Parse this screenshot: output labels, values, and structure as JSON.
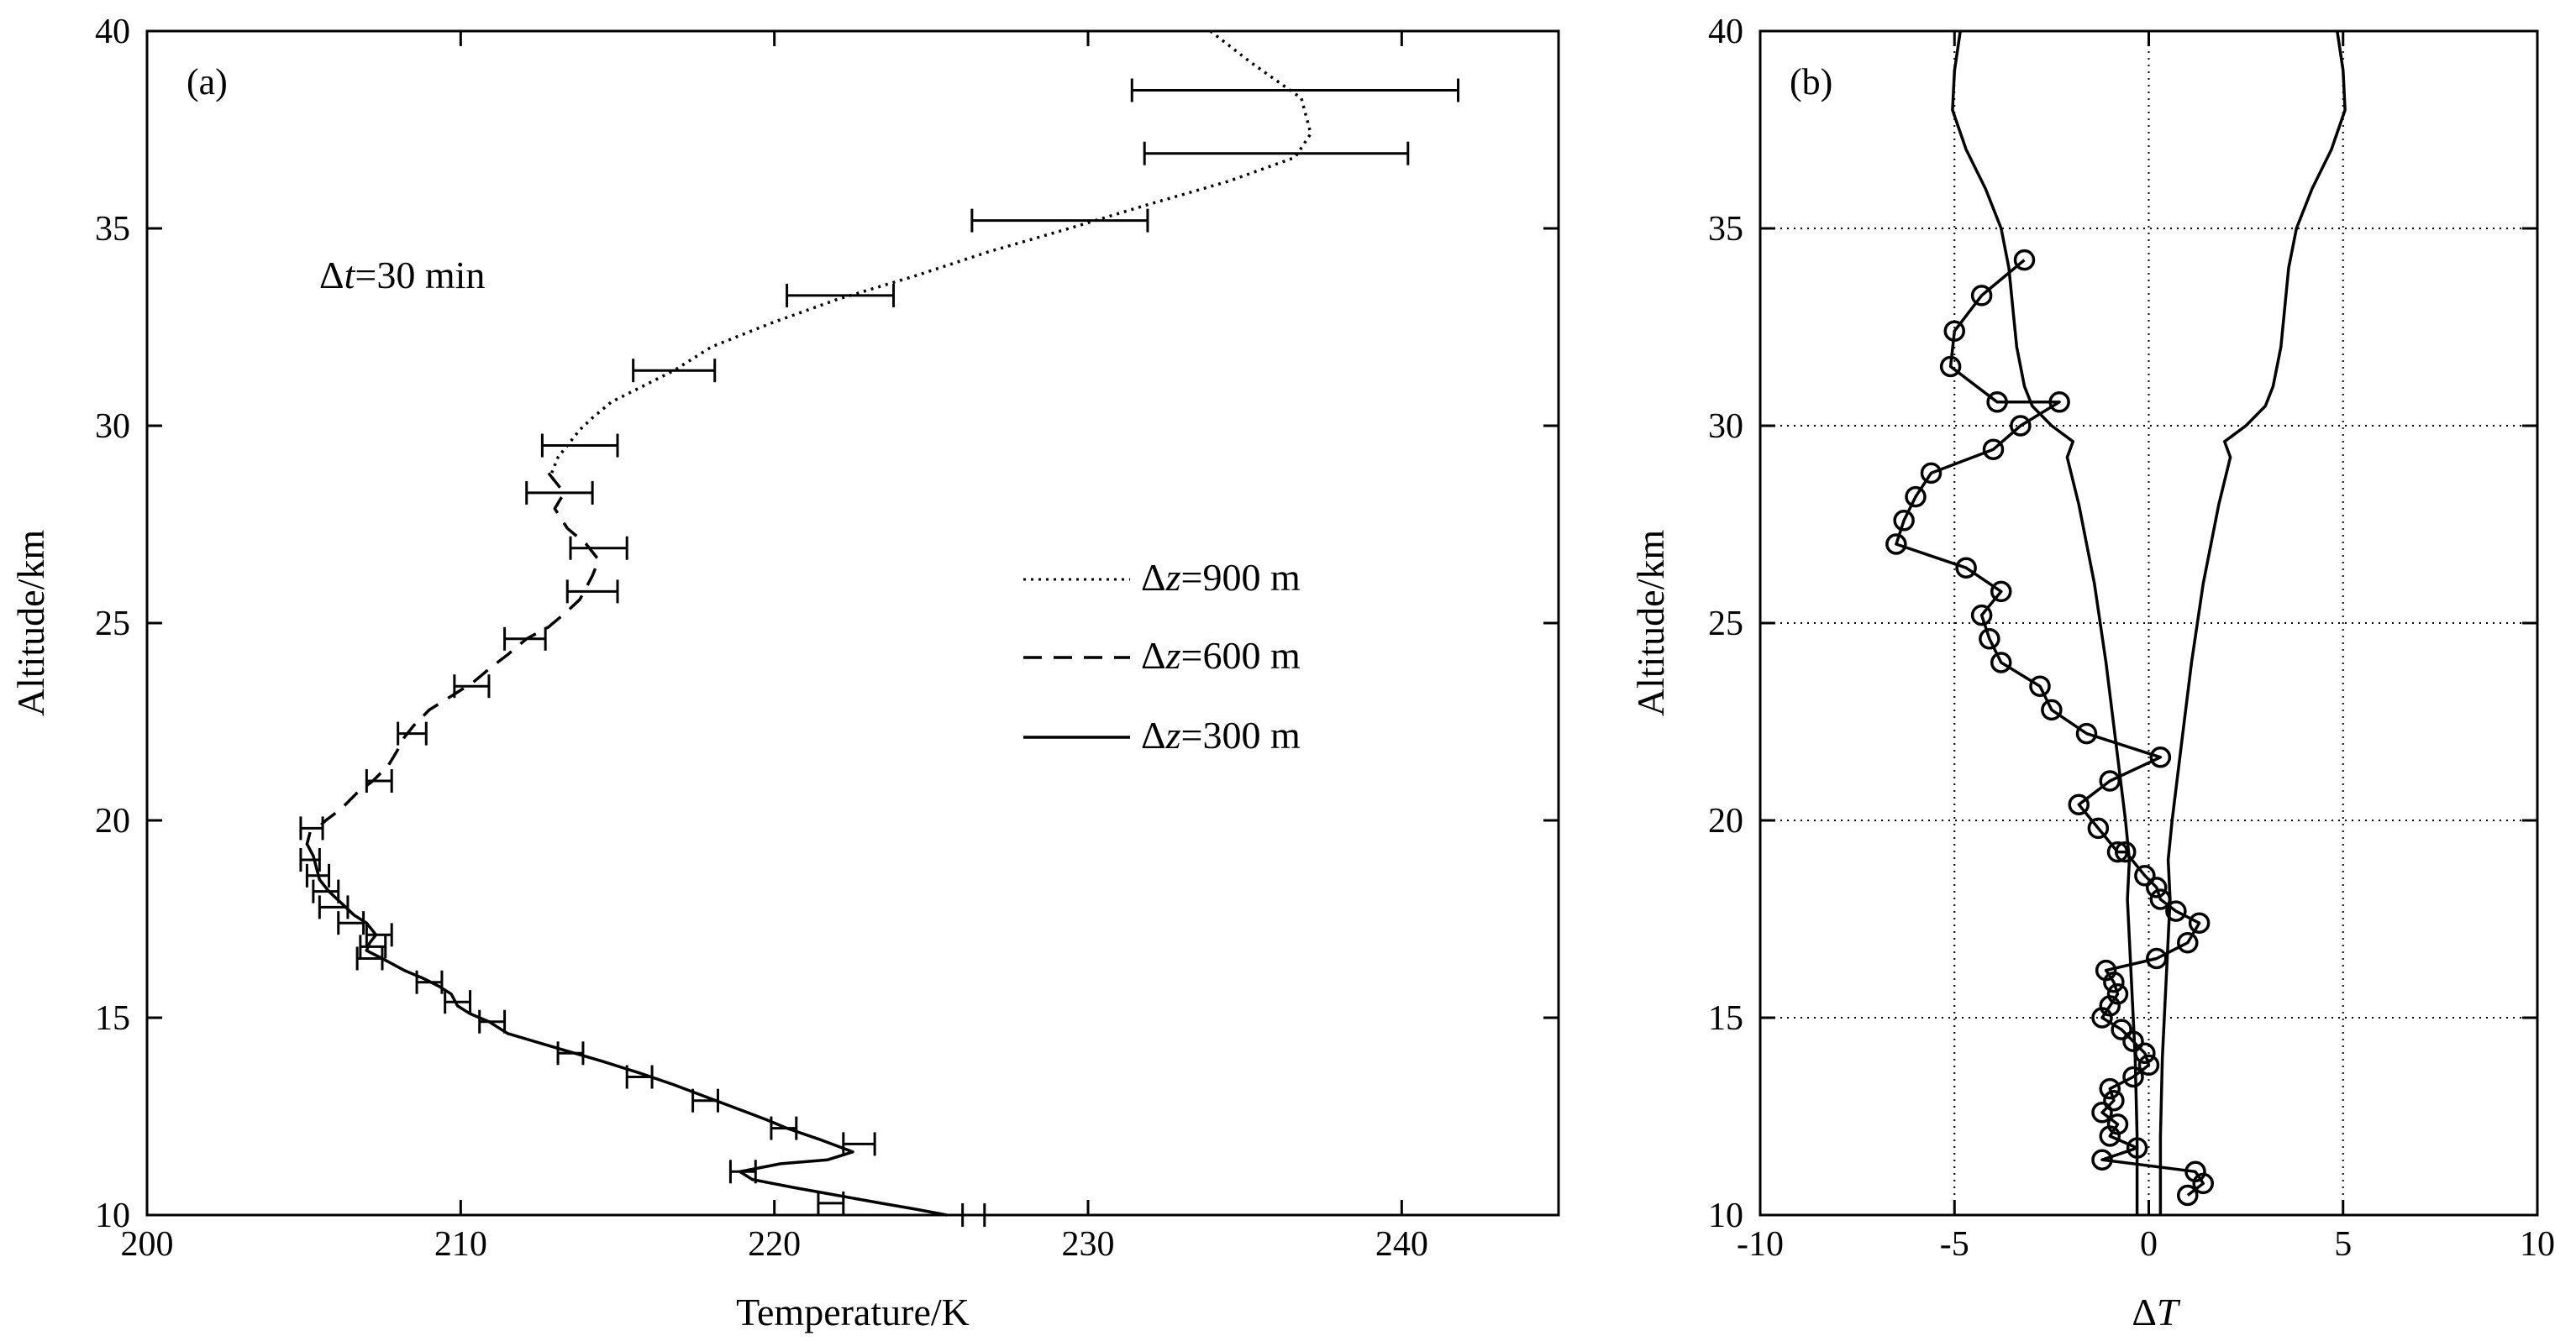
{
  "chart_data": [
    {
      "type": "line",
      "panel_label": "(a)",
      "xlabel": "Temperature/K",
      "ylabel": "Altitude/km",
      "xlim": [
        200,
        245
      ],
      "ylim": [
        10,
        40
      ],
      "xticks": [
        "200",
        "210",
        "220",
        "230",
        "240"
      ],
      "yticks": [
        "10",
        "15",
        "20",
        "25",
        "30",
        "35",
        "40"
      ],
      "grid": false,
      "annotation": {
        "prefix": "Δ",
        "var": "t",
        "suffix": "=30 min",
        "x": 205,
        "y": 34
      },
      "legend": {
        "position": "middle-right",
        "entries": [
          {
            "prefix": "Δ",
            "var": "z",
            "suffix": "=900 m",
            "style": "dotted"
          },
          {
            "prefix": "Δ",
            "var": "z",
            "suffix": "=600 m",
            "style": "dashed"
          },
          {
            "prefix": "Δ",
            "var": "z",
            "suffix": "=300 m",
            "style": "solid"
          }
        ]
      },
      "series": [
        {
          "style": "dotted",
          "x": [
            233.9,
            235.2,
            236.8,
            237.1,
            236.6,
            234.5,
            231.9,
            229.4,
            226.8,
            224.5,
            222.0,
            219.9,
            218.0,
            216.8,
            215.8,
            214.8,
            214.2,
            213.8,
            213.4,
            213.1,
            212.9,
            213.0
          ],
          "y": [
            40,
            39.2,
            38.3,
            37.4,
            36.8,
            36.2,
            35.6,
            35.0,
            34.4,
            33.8,
            33.2,
            32.6,
            32.0,
            31.4,
            31.0,
            30.6,
            30.2,
            29.9,
            29.5,
            29.2,
            28.8,
            28.5
          ]
        },
        {
          "style": "dashed",
          "x": [
            212.8,
            213.3,
            213.0,
            213.4,
            214.0,
            214.4,
            214.2,
            214.0,
            213.8,
            213.4,
            212.8,
            212.1,
            211.5,
            211.0,
            210.4,
            209.6,
            209.0,
            208.5,
            208.2,
            208.0,
            207.7,
            207.2,
            206.7,
            206.2,
            205.7,
            205.3
          ],
          "y": [
            28.8,
            28.3,
            27.9,
            27.4,
            27.0,
            26.6,
            26.2,
            25.9,
            25.6,
            25.3,
            24.9,
            24.6,
            24.2,
            23.9,
            23.5,
            23.1,
            22.8,
            22.4,
            22.1,
            21.8,
            21.4,
            21.0,
            20.7,
            20.3,
            20.0,
            19.7
          ]
        },
        {
          "style": "solid",
          "x": [
            205.2,
            205.1,
            205.3,
            205.4,
            205.5,
            205.8,
            206.2,
            206.6,
            207.0,
            207.3,
            207.1,
            207.0,
            207.5,
            208.2,
            208.8,
            209.3,
            209.7,
            209.9,
            210.3,
            210.9,
            211.5,
            213.2,
            214.5,
            215.7,
            216.8,
            217.8,
            218.8,
            219.8,
            220.4,
            221.5,
            222.5,
            221.7,
            220.2,
            218.9,
            219.3,
            220.6,
            222.0,
            223.4,
            224.5,
            225.5
          ],
          "y": [
            19.7,
            19.4,
            19.1,
            18.8,
            18.5,
            18.2,
            17.9,
            17.6,
            17.4,
            17.1,
            16.9,
            16.7,
            16.5,
            16.2,
            16.0,
            15.8,
            15.6,
            15.3,
            15.1,
            14.9,
            14.6,
            14.2,
            13.9,
            13.6,
            13.3,
            13.0,
            12.7,
            12.4,
            12.2,
            11.9,
            11.6,
            11.4,
            11.3,
            11.1,
            10.9,
            10.7,
            10.5,
            10.3,
            10.15,
            10.0
          ]
        }
      ],
      "error_bars": [
        {
          "y": 38.5,
          "x0": 231.4,
          "x1": 241.8
        },
        {
          "y": 36.9,
          "x0": 231.8,
          "x1": 240.2
        },
        {
          "y": 35.2,
          "x0": 226.3,
          "x1": 231.9
        },
        {
          "y": 33.3,
          "x0": 220.4,
          "x1": 223.8
        },
        {
          "y": 31.4,
          "x0": 215.5,
          "x1": 218.1
        },
        {
          "y": 29.5,
          "x0": 212.6,
          "x1": 215.0
        },
        {
          "y": 28.3,
          "x0": 212.1,
          "x1": 214.2
        },
        {
          "y": 26.9,
          "x0": 213.5,
          "x1": 215.3
        },
        {
          "y": 25.8,
          "x0": 213.4,
          "x1": 215.0
        },
        {
          "y": 24.6,
          "x0": 211.4,
          "x1": 212.7
        },
        {
          "y": 23.4,
          "x0": 209.8,
          "x1": 210.9
        },
        {
          "y": 22.2,
          "x0": 208.0,
          "x1": 208.9
        },
        {
          "y": 21.0,
          "x0": 207.0,
          "x1": 207.8
        },
        {
          "y": 19.8,
          "x0": 204.9,
          "x1": 205.6
        },
        {
          "y": 19.0,
          "x0": 204.9,
          "x1": 205.5
        },
        {
          "y": 18.6,
          "x0": 205.1,
          "x1": 205.8
        },
        {
          "y": 18.2,
          "x0": 205.3,
          "x1": 206.1
        },
        {
          "y": 17.8,
          "x0": 205.5,
          "x1": 206.4
        },
        {
          "y": 17.4,
          "x0": 206.1,
          "x1": 206.9
        },
        {
          "y": 17.1,
          "x0": 207.0,
          "x1": 207.8
        },
        {
          "y": 16.8,
          "x0": 206.8,
          "x1": 207.6
        },
        {
          "y": 16.5,
          "x0": 206.7,
          "x1": 207.5
        },
        {
          "y": 15.9,
          "x0": 208.6,
          "x1": 209.4
        },
        {
          "y": 15.4,
          "x0": 209.5,
          "x1": 210.3
        },
        {
          "y": 14.9,
          "x0": 210.6,
          "x1": 211.4
        },
        {
          "y": 14.1,
          "x0": 213.1,
          "x1": 213.9
        },
        {
          "y": 13.5,
          "x0": 215.3,
          "x1": 216.1
        },
        {
          "y": 12.9,
          "x0": 217.4,
          "x1": 218.2
        },
        {
          "y": 12.2,
          "x0": 219.9,
          "x1": 220.7
        },
        {
          "y": 11.8,
          "x0": 222.2,
          "x1": 223.2
        },
        {
          "y": 11.1,
          "x0": 218.6,
          "x1": 219.4
        },
        {
          "y": 10.3,
          "x0": 221.4,
          "x1": 222.2
        },
        {
          "y": 10.0,
          "x0": 226.0,
          "x1": 226.7
        }
      ]
    },
    {
      "type": "line",
      "panel_label": "(b)",
      "xlabel": "Δ",
      "xlabel_var": "T",
      "ylabel": "Altitude/km",
      "xlim": [
        -10,
        10
      ],
      "ylim": [
        10,
        40
      ],
      "xticks": [
        "-10",
        "-5",
        "0",
        "5",
        "10"
      ],
      "yticks": [
        "10",
        "15",
        "20",
        "25",
        "30",
        "35",
        "40"
      ],
      "grid": true,
      "series": [
        {
          "style": "solid-markers",
          "marker": "open-circle",
          "x": [
            -3.2,
            -4.3,
            -5.0,
            -5.1,
            -3.9,
            -2.3,
            -3.3,
            -4.0,
            -5.6,
            -6.0,
            -6.3,
            -6.5,
            -4.7,
            -3.8,
            -4.3,
            -4.1,
            -3.8,
            -2.8,
            -2.5,
            -1.6,
            0.3,
            -1.0,
            -1.8,
            -1.3,
            -0.8,
            -0.6,
            -0.1,
            0.2,
            0.3,
            0.7,
            1.3,
            1.0,
            0.2,
            -1.1,
            -0.9,
            -0.8,
            -1.0,
            -1.2,
            -0.7,
            -0.4,
            -0.1,
            0.0,
            -0.4,
            -1.0,
            -0.9,
            -1.2,
            -0.8,
            -1.0,
            -0.3,
            -1.2,
            1.2,
            1.4,
            1.0
          ],
          "y": [
            34.2,
            33.3,
            32.4,
            31.5,
            30.6,
            30.6,
            30.0,
            29.4,
            28.8,
            28.2,
            27.6,
            27.0,
            26.4,
            25.8,
            25.2,
            24.6,
            24.0,
            23.4,
            22.8,
            22.2,
            21.6,
            21.0,
            20.4,
            19.8,
            19.2,
            19.2,
            18.6,
            18.3,
            18.0,
            17.7,
            17.4,
            16.9,
            16.5,
            16.2,
            15.9,
            15.6,
            15.3,
            15.0,
            14.7,
            14.4,
            14.1,
            13.8,
            13.5,
            13.2,
            12.9,
            12.6,
            12.3,
            12.0,
            11.7,
            11.4,
            11.1,
            10.8,
            10.5
          ]
        },
        {
          "style": "solid",
          "x": [
            -4.85,
            -5.0,
            -5.05,
            -4.7,
            -4.2,
            -3.8,
            -3.6,
            -3.5,
            -3.4,
            -3.2,
            -3.0,
            -2.5,
            -1.95,
            -2.1,
            -1.8,
            -1.4,
            -1.1,
            -0.85,
            -0.6,
            -0.5,
            -0.55,
            -0.45,
            -0.4,
            -0.35,
            -0.3,
            -0.3,
            -0.3
          ],
          "y": [
            40,
            39.0,
            38.0,
            37.0,
            36.0,
            35.0,
            34.0,
            33.0,
            32.0,
            31.0,
            30.5,
            30.0,
            29.6,
            29.2,
            28.0,
            26.0,
            24.0,
            22.0,
            20.0,
            19.0,
            18.0,
            16.0,
            15.0,
            14.0,
            12.0,
            11.0,
            10.0
          ]
        },
        {
          "style": "solid",
          "x": [
            4.85,
            5.0,
            5.05,
            4.7,
            4.2,
            3.8,
            3.6,
            3.5,
            3.4,
            3.2,
            3.0,
            2.5,
            1.95,
            2.1,
            1.8,
            1.4,
            1.1,
            0.85,
            0.6,
            0.5,
            0.55,
            0.45,
            0.4,
            0.35,
            0.3,
            0.3,
            0.3
          ],
          "y": [
            40,
            39.0,
            38.0,
            37.0,
            36.0,
            35.0,
            34.0,
            33.0,
            32.0,
            31.0,
            30.5,
            30.0,
            29.6,
            29.2,
            28.0,
            26.0,
            24.0,
            22.0,
            20.0,
            19.0,
            18.0,
            16.0,
            15.0,
            14.0,
            12.0,
            11.0,
            10.0
          ]
        }
      ]
    }
  ]
}
